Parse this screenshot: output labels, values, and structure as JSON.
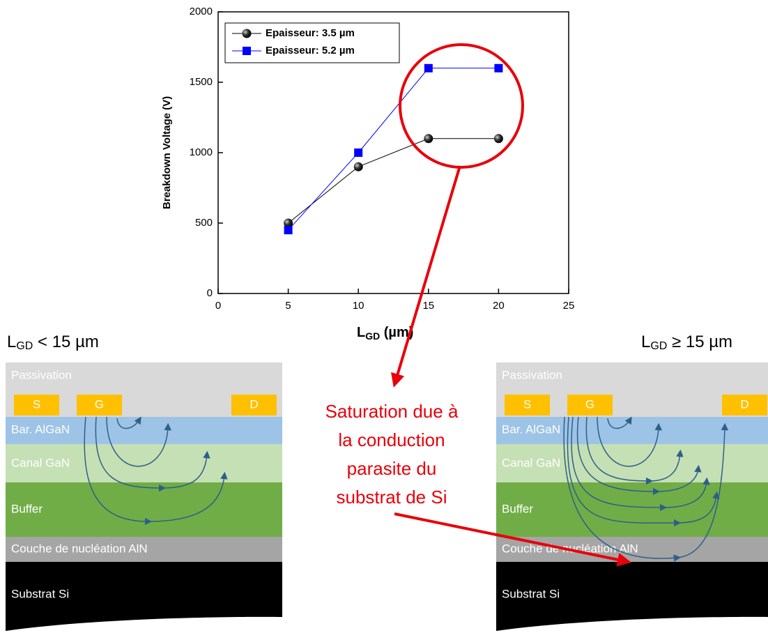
{
  "chart_data": {
    "type": "line",
    "x_label": [
      "L",
      "GD",
      " (µm)"
    ],
    "y_label": "Breakdown Voltage (V)",
    "x": [
      5,
      10,
      15,
      20
    ],
    "series": [
      {
        "name": "Epaisseur: 3.5 µm",
        "color": "#000000",
        "marker": "circle",
        "values": [
          500,
          900,
          1100,
          1100
        ]
      },
      {
        "name": "Epaisseur: 5.2 µm",
        "color": "#0000ff",
        "marker": "square",
        "values": [
          450,
          1000,
          1600,
          1600
        ]
      }
    ],
    "xlim": [
      0,
      25
    ],
    "xticks": [
      0,
      5,
      10,
      15,
      20,
      25
    ],
    "ylim": [
      0,
      2000
    ],
    "yticks": [
      0,
      500,
      1000,
      1500,
      2000
    ],
    "legend": "upper left"
  },
  "annotation": [
    "Saturation due à",
    "la conduction",
    "parasite du",
    "substrat de Si"
  ],
  "panels": [
    {
      "title": [
        "L",
        "GD",
        " < 15 µm"
      ],
      "layers": [
        "Passivation",
        "Bar. AlGaN",
        "Canal GaN",
        "Buffer",
        "Couche de nucléation AlN",
        "Substrat Si"
      ],
      "electrodes": [
        "S",
        "G",
        "D"
      ]
    },
    {
      "title": [
        "L",
        "GD",
        " ≥ 15 µm"
      ],
      "layers": [
        "Passivation",
        "Bar. AlGaN",
        "Canal GaN",
        "Buffer",
        "Couche de nucléation AlN",
        "Substrat Si"
      ],
      "electrodes": [
        "S",
        "G",
        "D"
      ]
    }
  ]
}
